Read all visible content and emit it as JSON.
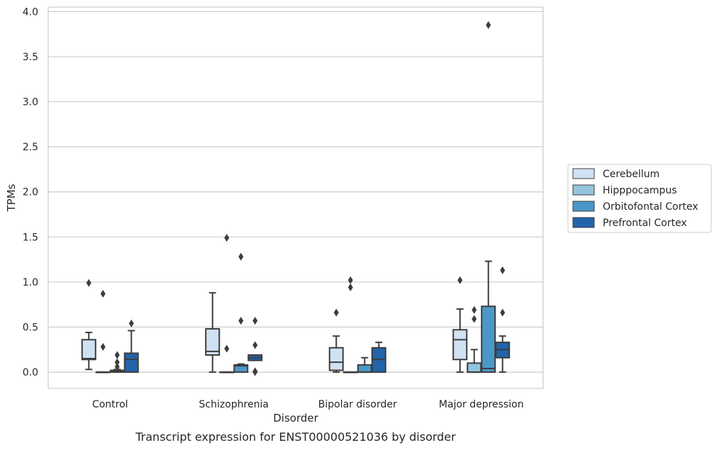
{
  "chart_data": {
    "type": "box",
    "caption": "Transcript expression for ENST00000521036 by disorder",
    "xlabel": "Disorder",
    "ylabel": "TPMs",
    "ylim": [
      -0.18,
      4.05
    ],
    "yticks": [
      "0.0",
      "0.5",
      "1.0",
      "1.5",
      "2.0",
      "2.5",
      "3.0",
      "3.5",
      "4.0"
    ],
    "ytick_values": [
      0,
      0.5,
      1.0,
      1.5,
      2.0,
      2.5,
      3.0,
      3.5,
      4.0
    ],
    "grid": "horizontal",
    "legend_position": "right",
    "categories": [
      "Control",
      "Schizophrenia",
      "Bipolar disorder",
      "Major depression"
    ],
    "series": [
      {
        "name": "Cerebellum",
        "color": "#d0e1f2",
        "boxes": [
          {
            "whislo": 0.03,
            "q1": 0.14,
            "med": 0.15,
            "q3": 0.36,
            "whishi": 0.44,
            "fliers": [
              0.99
            ]
          },
          {
            "whislo": 0.0,
            "q1": 0.19,
            "med": 0.23,
            "q3": 0.48,
            "whishi": 0.88,
            "fliers": []
          },
          {
            "whislo": 0.0,
            "q1": 0.02,
            "med": 0.11,
            "q3": 0.27,
            "whishi": 0.4,
            "fliers": [
              0.66
            ]
          },
          {
            "whislo": 0.0,
            "q1": 0.14,
            "med": 0.36,
            "q3": 0.47,
            "whishi": 0.7,
            "fliers": [
              1.02
            ]
          }
        ]
      },
      {
        "name": "Hipppocampus",
        "color": "#94c4df",
        "boxes": [
          {
            "whislo": 0.0,
            "q1": 0.0,
            "med": 0.0,
            "q3": 0.0,
            "whishi": 0.0,
            "fliers": [
              0.28,
              0.87
            ]
          },
          {
            "whislo": 0.0,
            "q1": 0.0,
            "med": 0.0,
            "q3": 0.0,
            "whishi": 0.0,
            "fliers": [
              0.26,
              1.49
            ]
          },
          {
            "whislo": 0.0,
            "q1": 0.0,
            "med": 0.0,
            "q3": 0.0,
            "whishi": 0.0,
            "fliers": [
              0.94,
              1.02
            ]
          },
          {
            "whislo": 0.0,
            "q1": 0.0,
            "med": 0.0,
            "q3": 0.1,
            "whishi": 0.25,
            "fliers": [
              0.59,
              0.69
            ]
          }
        ]
      },
      {
        "name": "Orbitofontal Cortex",
        "color": "#4a98c9",
        "boxes": [
          {
            "whislo": 0.0,
            "q1": 0.0,
            "med": 0.01,
            "q3": 0.02,
            "whishi": 0.03,
            "fliers": [
              0.06,
              0.11,
              0.19
            ]
          },
          {
            "whislo": 0.0,
            "q1": 0.0,
            "med": 0.07,
            "q3": 0.08,
            "whishi": 0.09,
            "fliers": [
              0.57,
              1.28
            ]
          },
          {
            "whislo": 0.0,
            "q1": 0.0,
            "med": 0.0,
            "q3": 0.08,
            "whishi": 0.16,
            "fliers": []
          },
          {
            "whislo": 0.0,
            "q1": 0.0,
            "med": 0.04,
            "q3": 0.73,
            "whishi": 1.23,
            "fliers": [
              3.85
            ]
          }
        ]
      },
      {
        "name": "Prefrontal Cortex",
        "color": "#2164ab",
        "boxes": [
          {
            "whislo": 0.0,
            "q1": 0.0,
            "med": 0.14,
            "q3": 0.21,
            "whishi": 0.46,
            "fliers": [
              0.54
            ]
          },
          {
            "whislo": 0.13,
            "q1": 0.13,
            "med": 0.16,
            "q3": 0.19,
            "whishi": 0.19,
            "fliers": [
              0.0,
              0.01,
              0.3,
              0.57
            ]
          },
          {
            "whislo": 0.0,
            "q1": 0.0,
            "med": 0.14,
            "q3": 0.27,
            "whishi": 0.33,
            "fliers": []
          },
          {
            "whislo": 0.0,
            "q1": 0.16,
            "med": 0.25,
            "q3": 0.33,
            "whishi": 0.4,
            "fliers": [
              0.66,
              1.13
            ]
          }
        ]
      }
    ]
  }
}
